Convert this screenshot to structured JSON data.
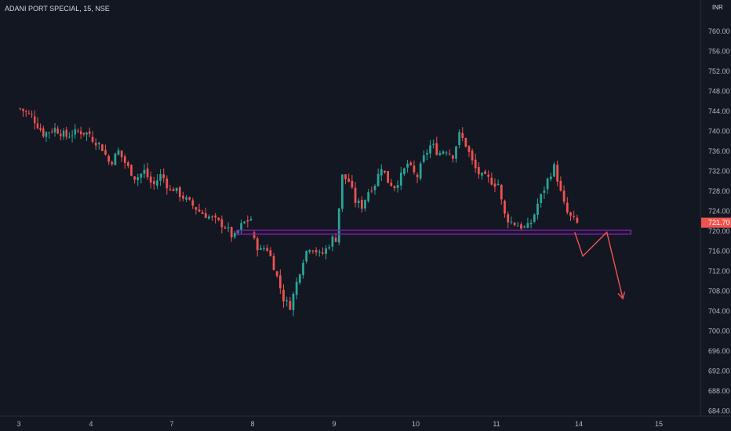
{
  "header": {
    "symbol_title": "ADANI PORT SPECIAL, 15, NSE"
  },
  "price_axis": {
    "currency": "INR",
    "last_price_label": "721.70"
  },
  "colors": {
    "background": "#131722",
    "up": "#26a69a",
    "down": "#ef5350",
    "support_line": "#7b1fa2",
    "arrow": "#ef5350",
    "badge": "#ef5350",
    "grid": "#1e222d"
  },
  "chart_data": {
    "type": "candlestick",
    "title": "ADANI PORT SPECIAL, 15, NSE",
    "x_ticks": [
      "3",
      "4",
      "7",
      "8",
      "9",
      "10",
      "11",
      "14",
      "15"
    ],
    "y_ticks": [
      684,
      688,
      692,
      696,
      700,
      704,
      708,
      712,
      716,
      720,
      724,
      728,
      732,
      736,
      740,
      744,
      748,
      752,
      756,
      760
    ],
    "ylim": [
      682,
      766
    ],
    "last_price": 721.7,
    "support_level": 719.8,
    "grid": false,
    "candles_per_day": 25,
    "sessions": [
      {
        "day": "3",
        "anchors": [
          744.5,
          743.0,
          739.5,
          740.5,
          739.0,
          740.0,
          739.5
        ]
      },
      {
        "day": "4",
        "anchors": [
          738.5,
          737.0,
          733.5,
          736.0,
          733.0,
          730.5,
          732.0,
          729.0,
          731.5,
          728.0
        ]
      },
      {
        "day": "7",
        "anchors": [
          728.5,
          727.0,
          725.5,
          724.0,
          723.0,
          722.0,
          721.0,
          718.5,
          721.5,
          722.5
        ]
      },
      {
        "day": "8",
        "anchors": [
          718.0,
          716.0,
          717.0,
          714.0,
          710.0,
          706.0,
          705.0,
          709.5,
          714.0,
          717.0,
          716.5,
          715.0,
          716.5,
          718.5
        ]
      },
      {
        "day": "9",
        "anchors": [
          718.5,
          731.0,
          730.0,
          726.0,
          725.0,
          728.0,
          729.5,
          733.0,
          730.0,
          729.0,
          731.0,
          733.5,
          731.5
        ]
      },
      {
        "day": "10",
        "anchors": [
          731.0,
          735.0,
          737.5,
          735.5,
          736.5,
          735.0,
          739.5,
          737.0,
          733.0,
          731.0,
          730.5,
          729.5
        ]
      },
      {
        "day": "11",
        "anchors": [
          729.5,
          723.5,
          722.0,
          721.5,
          721.0,
          720.5,
          722.0,
          725.5,
          728.0,
          731.0,
          733.0,
          728.0,
          724.0,
          722.5,
          721.7
        ]
      }
    ],
    "projection": {
      "points": [
        {
          "session": 6.95,
          "price": 719.8
        },
        {
          "session": 7.05,
          "price": 715.0
        },
        {
          "session": 7.35,
          "price": 719.8
        },
        {
          "session": 7.55,
          "price": 706.5
        }
      ]
    }
  }
}
